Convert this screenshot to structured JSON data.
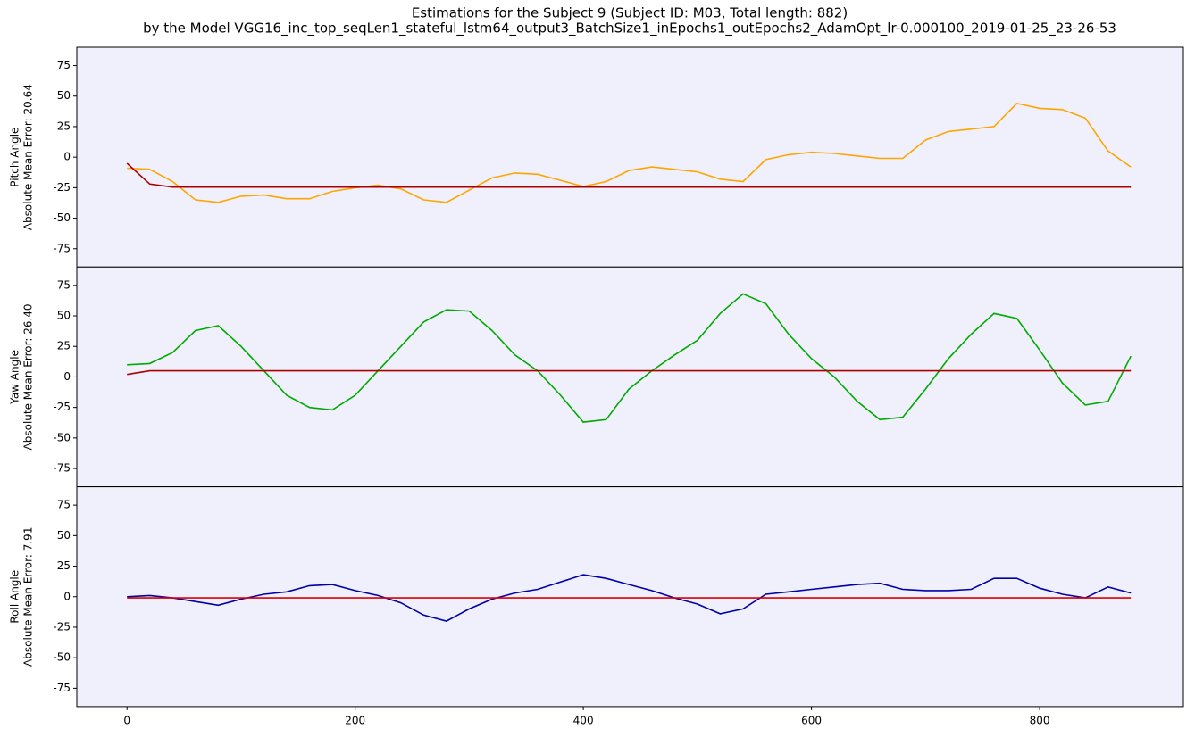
{
  "title": "Estimations for the Subject 9 (Subject ID: M03, Total length: 882)",
  "subtitle": "by the Model VGG16_inc_top_seqLen1_stateful_lstm64_output3_BatchSize1_inEpochs1_outEpochs2_AdamOpt_lr-0.000100_2019-01-25_23-26-53",
  "chart_data": [
    {
      "type": "line",
      "ylabel": [
        "Pitch Angle",
        "Absolute Mean Error: 20.64"
      ],
      "background": "#f0f0fc",
      "xlim": [
        -44,
        926
      ],
      "ylim": [
        -90,
        90
      ],
      "yticks": [
        -75,
        -50,
        -25,
        0,
        25,
        50,
        75
      ],
      "x": [
        0,
        20,
        40,
        60,
        80,
        100,
        120,
        140,
        160,
        180,
        200,
        220,
        240,
        260,
        280,
        300,
        320,
        340,
        360,
        380,
        400,
        420,
        440,
        460,
        480,
        500,
        520,
        540,
        560,
        580,
        600,
        620,
        640,
        660,
        680,
        700,
        720,
        740,
        760,
        780,
        800,
        820,
        840,
        860,
        880
      ],
      "series": [
        {
          "color": "#ffa500",
          "values": [
            -9,
            -10,
            -20,
            -35,
            -37,
            -32,
            -31,
            -34,
            -34,
            -28,
            -25,
            -23,
            -26,
            -35,
            -37,
            -27,
            -17,
            -13,
            -14,
            -19,
            -24,
            -20,
            -11,
            -8,
            -10,
            -12,
            -18,
            -20,
            -2,
            2,
            4,
            3,
            1,
            -1,
            -1,
            14,
            21,
            23,
            25,
            44,
            40,
            39,
            32,
            5,
            -8
          ]
        },
        {
          "color": "#aa0000",
          "values": [
            -5,
            -22,
            -24.5,
            -24.5,
            -24.5,
            -24.5,
            -24.5,
            -24.5,
            -24.5,
            -24.5,
            -24.5,
            -24.5,
            -24.5,
            -24.5,
            -24.5,
            -24.5,
            -24.5,
            -24.5,
            -24.5,
            -24.5,
            -24.5,
            -24.5,
            -24.5,
            -24.5,
            -24.5,
            -24.5,
            -24.5,
            -24.5,
            -24.5,
            -24.5,
            -24.5,
            -24.5,
            -24.5,
            -24.5,
            -24.5,
            -24.5,
            -24.5,
            -24.5,
            -24.5,
            -24.5,
            -24.5,
            -24.5,
            -24.5,
            -24.5,
            -24.5
          ]
        }
      ]
    },
    {
      "type": "line",
      "ylabel": [
        "Yaw Angle",
        "Absolute Mean Error: 26.40"
      ],
      "background": "#f0f0fc",
      "xlim": [
        -44,
        926
      ],
      "ylim": [
        -90,
        90
      ],
      "yticks": [
        -75,
        -50,
        -25,
        0,
        25,
        50,
        75
      ],
      "x": [
        0,
        20,
        40,
        60,
        80,
        100,
        120,
        140,
        160,
        180,
        200,
        220,
        240,
        260,
        280,
        300,
        320,
        340,
        360,
        380,
        400,
        420,
        440,
        460,
        480,
        500,
        520,
        540,
        560,
        580,
        600,
        620,
        640,
        660,
        680,
        700,
        720,
        740,
        760,
        780,
        800,
        820,
        840,
        860,
        880
      ],
      "series": [
        {
          "color": "#00aa00",
          "values": [
            10,
            11,
            20,
            38,
            42,
            25,
            5,
            -15,
            -25,
            -27,
            -15,
            5,
            25,
            45,
            55,
            54,
            38,
            18,
            5,
            -15,
            -37,
            -35,
            -10,
            5,
            18,
            30,
            52,
            68,
            60,
            35,
            15,
            0,
            -20,
            -35,
            -33,
            -10,
            15,
            35,
            52,
            48,
            22,
            -5,
            -23,
            -20,
            17
          ]
        },
        {
          "color": "#aa0000",
          "values": [
            2,
            5,
            5,
            5,
            5,
            5,
            5,
            5,
            5,
            5,
            5,
            5,
            5,
            5,
            5,
            5,
            5,
            5,
            5,
            5,
            5,
            5,
            5,
            5,
            5,
            5,
            5,
            5,
            5,
            5,
            5,
            5,
            5,
            5,
            5,
            5,
            5,
            5,
            5,
            5,
            5,
            5,
            5,
            5,
            5
          ]
        }
      ]
    },
    {
      "type": "line",
      "ylabel": [
        "Roll Angle",
        "Absolute Mean Error: 7.91"
      ],
      "background": "#f0f0fc",
      "xlim": [
        -44,
        926
      ],
      "ylim": [
        -90,
        90
      ],
      "yticks": [
        -75,
        -50,
        -25,
        0,
        25,
        50,
        75
      ],
      "xticks": [
        0,
        200,
        400,
        600,
        800
      ],
      "x": [
        0,
        20,
        40,
        60,
        80,
        100,
        120,
        140,
        160,
        180,
        200,
        220,
        240,
        260,
        280,
        300,
        320,
        340,
        360,
        380,
        400,
        420,
        440,
        460,
        480,
        500,
        520,
        540,
        560,
        580,
        600,
        620,
        640,
        660,
        680,
        700,
        720,
        740,
        760,
        780,
        800,
        820,
        840,
        860,
        880
      ],
      "series": [
        {
          "color": "#0000aa",
          "values": [
            0,
            1,
            -1,
            -4,
            -7,
            -2,
            2,
            4,
            9,
            10,
            5,
            1,
            -5,
            -15,
            -20,
            -10,
            -2,
            3,
            6,
            12,
            18,
            15,
            10,
            5,
            -1,
            -6,
            -14,
            -10,
            2,
            4,
            6,
            8,
            10,
            11,
            6,
            5,
            5,
            6,
            15,
            15,
            7,
            2,
            -1,
            8,
            3
          ]
        },
        {
          "color": "#dd0000",
          "values": [
            -1,
            -1,
            -1,
            -1,
            -1,
            -1,
            -1,
            -1,
            -1,
            -1,
            -1,
            -1,
            -1,
            -1,
            -1,
            -1,
            -1,
            -1,
            -1,
            -1,
            -1,
            -1,
            -1,
            -1,
            -1,
            -1,
            -1,
            -1,
            -1,
            -1,
            -1,
            -1,
            -1,
            -1,
            -1,
            -1,
            -1,
            -1,
            -1,
            -1,
            -1,
            -1,
            -1,
            -1,
            -1
          ]
        }
      ]
    }
  ]
}
